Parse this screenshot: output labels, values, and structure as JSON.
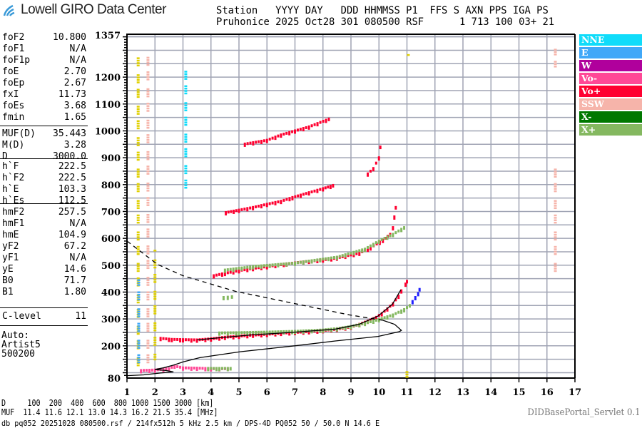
{
  "header": {
    "logo_text": "Lowell GIRO Data Center",
    "line1": "Station   YYYY DAY   DDD HHMMSS P1  FFS S AXN PPS IGA PS",
    "line2": "Pruhonice 2025 Oct28 301 080500 RSF      1 713 100 03+ 21"
  },
  "params": {
    "group1": [
      {
        "label": "foF2",
        "value": "10.800"
      },
      {
        "label": "foF1",
        "value": "N/A"
      },
      {
        "label": "foF1p",
        "value": "N/A"
      },
      {
        "label": "foE",
        "value": "2.70"
      },
      {
        "label": "foEp",
        "value": "2.67"
      },
      {
        "label": "fxI",
        "value": "11.73"
      },
      {
        "label": "foEs",
        "value": "3.68"
      },
      {
        "label": "fmin",
        "value": "1.65"
      }
    ],
    "group2": [
      {
        "label": "MUF(D)",
        "value": "35.443"
      },
      {
        "label": "M(D)",
        "value": "3.28"
      },
      {
        "label": "D",
        "value": "3000.0"
      }
    ],
    "group3": [
      {
        "label": "h`F",
        "value": "222.5"
      },
      {
        "label": "h`F2",
        "value": "222.5"
      },
      {
        "label": "h`E",
        "value": "103.3"
      },
      {
        "label": "h`Es",
        "value": "112.5"
      }
    ],
    "group4": [
      {
        "label": "hmF2",
        "value": "257.5"
      },
      {
        "label": "hmF1",
        "value": "N/A"
      },
      {
        "label": "hmE",
        "value": "104.9"
      },
      {
        "label": "yF2",
        "value": "67.2"
      },
      {
        "label": "yF1",
        "value": "N/A"
      },
      {
        "label": "yE",
        "value": "14.6"
      },
      {
        "label": "B0",
        "value": "71.7"
      },
      {
        "label": "B1",
        "value": "1.80"
      }
    ],
    "group5": [
      {
        "label": "C-level",
        "value": "11"
      }
    ],
    "auto": [
      "Auto:",
      "Artist5",
      "500200"
    ]
  },
  "legend": [
    {
      "label": "NNE",
      "color": "#10dcfa"
    },
    {
      "label": "E",
      "color": "#40a8f8"
    },
    {
      "label": "W",
      "color": "#b0009c"
    },
    {
      "label": "Vo-",
      "color": "#ff4896"
    },
    {
      "label": "Vo+",
      "color": "#ff0030"
    },
    {
      "label": "SSW",
      "color": "#f6b4aa"
    },
    {
      "label": "X-",
      "color": "#007800"
    },
    {
      "label": "X+",
      "color": "#84b860"
    }
  ],
  "bottom": {
    "d_line": "D     100  200  400  600  800 1000 1500 3000 [km]",
    "muf_line": "MUF  11.4 11.6 12.1 13.0 14.3 16.2 21.5 35.4 [MHz]",
    "db_line": "db pq052 20251028 080500.rsf / 214fx512h 5 kHz 2.5 km / DPS-4D PQ052 50 / 50.0 N 14.6 E",
    "servlet": "DIDBasePortal_Servlet 0.1"
  },
  "chart_data": {
    "type": "scatter",
    "xlim": [
      1,
      17
    ],
    "ylim": [
      80,
      1357
    ],
    "x_ticks": [
      "1",
      "2",
      "3",
      "4",
      "5",
      "6",
      "7",
      "8",
      "9",
      "10",
      "11",
      "12",
      "13",
      "14",
      "15",
      "16",
      "17"
    ],
    "y_ticks": [
      "1357",
      "1200",
      "1100",
      "1000",
      "900",
      "800",
      "700",
      "600",
      "500",
      "400",
      "300",
      "200",
      "80"
    ],
    "grid": true,
    "legend_position": "right",
    "traces": [
      {
        "mode": "Vo+",
        "color": "#ff0030",
        "points": [
          [
            2.2,
            228
          ],
          [
            2.6,
            224
          ],
          [
            3.0,
            223
          ],
          [
            3.5,
            222
          ],
          [
            4.0,
            226
          ],
          [
            4.5,
            232
          ],
          [
            5,
            236
          ],
          [
            5.5,
            240
          ],
          [
            6,
            243
          ],
          [
            6.5,
            247
          ],
          [
            7,
            250
          ],
          [
            7.5,
            253
          ],
          [
            8,
            257
          ],
          [
            8.5,
            262
          ],
          [
            9,
            270
          ],
          [
            9.3,
            280
          ],
          [
            9.6,
            292
          ],
          [
            9.9,
            306
          ],
          [
            10.1,
            320
          ],
          [
            10.3,
            338
          ],
          [
            10.5,
            357
          ],
          [
            10.7,
            385
          ],
          [
            10.8,
            405
          ],
          [
            10.95,
            430
          ],
          [
            11.0,
            440
          ]
        ]
      },
      {
        "mode": "X+",
        "color": "#84b860",
        "points": [
          [
            4.3,
            248
          ],
          [
            5,
            249
          ],
          [
            6,
            251
          ],
          [
            7,
            254
          ],
          [
            8,
            259
          ],
          [
            8.5,
            264
          ],
          [
            9,
            272
          ],
          [
            9.5,
            284
          ],
          [
            10,
            298
          ],
          [
            10.5,
            315
          ],
          [
            10.9,
            335
          ],
          [
            11.1,
            350
          ]
        ]
      },
      {
        "mode": "X",
        "color": "#2020ff",
        "points": [
          [
            11.2,
            365
          ],
          [
            11.3,
            380
          ],
          [
            11.4,
            395
          ],
          [
            11.45,
            410
          ]
        ]
      },
      {
        "mode": "Vo+",
        "color": "#ff0030",
        "points": [
          [
            4.1,
            461
          ],
          [
            4.5,
            470
          ],
          [
            5,
            480
          ],
          [
            5.5,
            488
          ],
          [
            6,
            495
          ],
          [
            6.7,
            505
          ],
          [
            7.5,
            515
          ],
          [
            8,
            520
          ],
          [
            8.5,
            527
          ],
          [
            9.3,
            545
          ],
          [
            9.7,
            565
          ],
          [
            10.14,
            593
          ],
          [
            10.4,
            615
          ],
          [
            10.5,
            640
          ],
          [
            10.55,
            680
          ],
          [
            10.6,
            715
          ]
        ]
      },
      {
        "mode": "X+",
        "color": "#84b860",
        "points": [
          [
            4.5,
            482
          ],
          [
            5.5,
            495
          ],
          [
            7,
            508
          ],
          [
            8.5,
            530
          ],
          [
            9.5,
            560
          ],
          [
            10,
            590
          ],
          [
            10.5,
            615
          ],
          [
            10.9,
            640
          ]
        ]
      },
      {
        "mode": "Vo+",
        "color": "#ff0030",
        "points": [
          [
            4.53,
            696
          ],
          [
            5,
            705
          ],
          [
            5.5,
            715
          ],
          [
            6,
            727
          ],
          [
            6.5,
            738
          ],
          [
            6.91,
            752
          ],
          [
            7.5,
            770
          ],
          [
            8,
            785
          ],
          [
            8.36,
            797
          ]
        ]
      },
      {
        "mode": "Vo+",
        "color": "#ff0030",
        "points": [
          [
            9.6,
            840
          ],
          [
            9.8,
            860
          ],
          [
            10.0,
            900
          ],
          [
            10.05,
            940
          ]
        ]
      },
      {
        "mode": "Vo+",
        "color": "#ff0030",
        "points": [
          [
            5.21,
            951
          ],
          [
            6,
            965
          ],
          [
            6.5,
            985
          ],
          [
            7,
            1000
          ],
          [
            7.5,
            1015
          ],
          [
            8.21,
            1044
          ]
        ]
      },
      {
        "mode": "Vo-",
        "color": "#ff4896",
        "points": [
          [
            1.5,
            108
          ],
          [
            2.0,
            110
          ],
          [
            2.5,
            115
          ],
          [
            2.7,
            125
          ],
          [
            3,
            118
          ],
          [
            3.5,
            117
          ],
          [
            4,
            115
          ],
          [
            4.6,
            115
          ]
        ]
      },
      {
        "mode": "X+",
        "color": "#84b860",
        "points": [
          [
            3.9,
            116
          ],
          [
            4.3,
            116
          ],
          [
            4.7,
            116
          ]
        ]
      },
      {
        "mode": "X+",
        "color": "#84b860",
        "points": [
          [
            4.45,
            380
          ],
          [
            4.6,
            381
          ],
          [
            4.75,
            383
          ]
        ]
      }
    ],
    "columns": [
      {
        "x": 1.4,
        "from": 110,
        "to": 1290,
        "color": "#e0d000"
      },
      {
        "x": 1.42,
        "from": 130,
        "to": 450,
        "color": "#40a8f8"
      },
      {
        "x": 1.75,
        "from": 130,
        "to": 1290,
        "color": "#f6b4aa"
      },
      {
        "x": 2.0,
        "from": 150,
        "to": 560,
        "color": "#e0d000"
      },
      {
        "x": 3.1,
        "from": 780,
        "to": 1240,
        "color": "#10dcfa"
      },
      {
        "x": 11.0,
        "from": 85,
        "to": 135,
        "color": "#e0d000"
      },
      {
        "x": 11.05,
        "from": 1265,
        "to": 1290,
        "color": "#e0d000"
      },
      {
        "x": 16.3,
        "from": 470,
        "to": 860,
        "color": "#f6b4aa"
      },
      {
        "x": 16.3,
        "from": 1240,
        "to": 1310,
        "color": "#f6b4aa"
      }
    ],
    "profile_solid": [
      [
        1.0,
        89
      ],
      [
        1.6,
        92
      ],
      [
        2.2,
        99
      ],
      [
        2.66,
        103
      ],
      [
        2.4,
        108
      ],
      [
        2.0,
        112
      ],
      [
        2.3,
        118
      ],
      [
        2.66,
        128
      ],
      [
        3.0,
        140
      ],
      [
        3.6,
        156
      ],
      [
        5.04,
        178
      ],
      [
        6.99,
        200
      ],
      [
        8.44,
        218
      ],
      [
        9.97,
        235
      ],
      [
        10.73,
        253
      ],
      [
        10.8,
        257.5
      ],
      [
        10.56,
        280
      ],
      [
        10.14,
        295
      ]
    ],
    "profile_dashed": [
      [
        10.14,
        295
      ],
      [
        8.95,
        315
      ],
      [
        8.02,
        335
      ],
      [
        5.89,
        381
      ],
      [
        4.87,
        403
      ],
      [
        3.0,
        461
      ],
      [
        2.09,
        503
      ],
      [
        1.0,
        590
      ]
    ],
    "fitted_trace": [
      [
        3.51,
        222
      ],
      [
        4.5,
        232
      ],
      [
        5.5,
        241
      ],
      [
        6.74,
        249
      ],
      [
        8.44,
        262
      ],
      [
        9.29,
        280
      ],
      [
        9.97,
        311
      ],
      [
        10.48,
        355
      ],
      [
        10.78,
        408
      ]
    ]
  }
}
